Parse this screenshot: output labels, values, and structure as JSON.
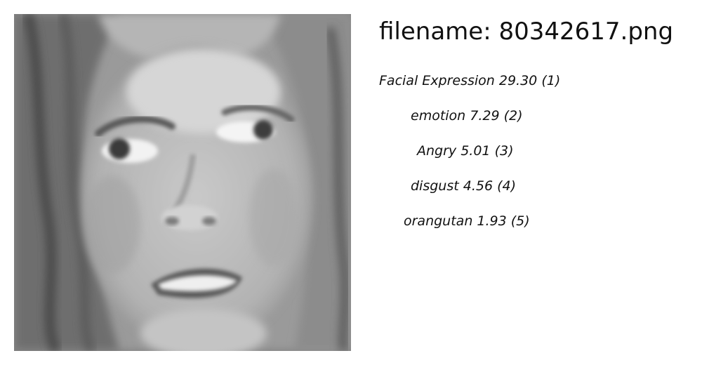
{
  "header": {
    "filename_label": "filename:",
    "filename": "80342617.png"
  },
  "image": {
    "description_icon": "portrait-photo"
  },
  "predictions": [
    {
      "label": "Facial Expression",
      "score": "29.30",
      "rank": "(1)"
    },
    {
      "label": "emotion",
      "score": "7.29",
      "rank": "(2)"
    },
    {
      "label": "Angry",
      "score": "5.01",
      "rank": "(3)"
    },
    {
      "label": "disgust",
      "score": "4.56",
      "rank": "(4)"
    },
    {
      "label": "orangutan",
      "score": "1.93",
      "rank": "(5)"
    }
  ]
}
